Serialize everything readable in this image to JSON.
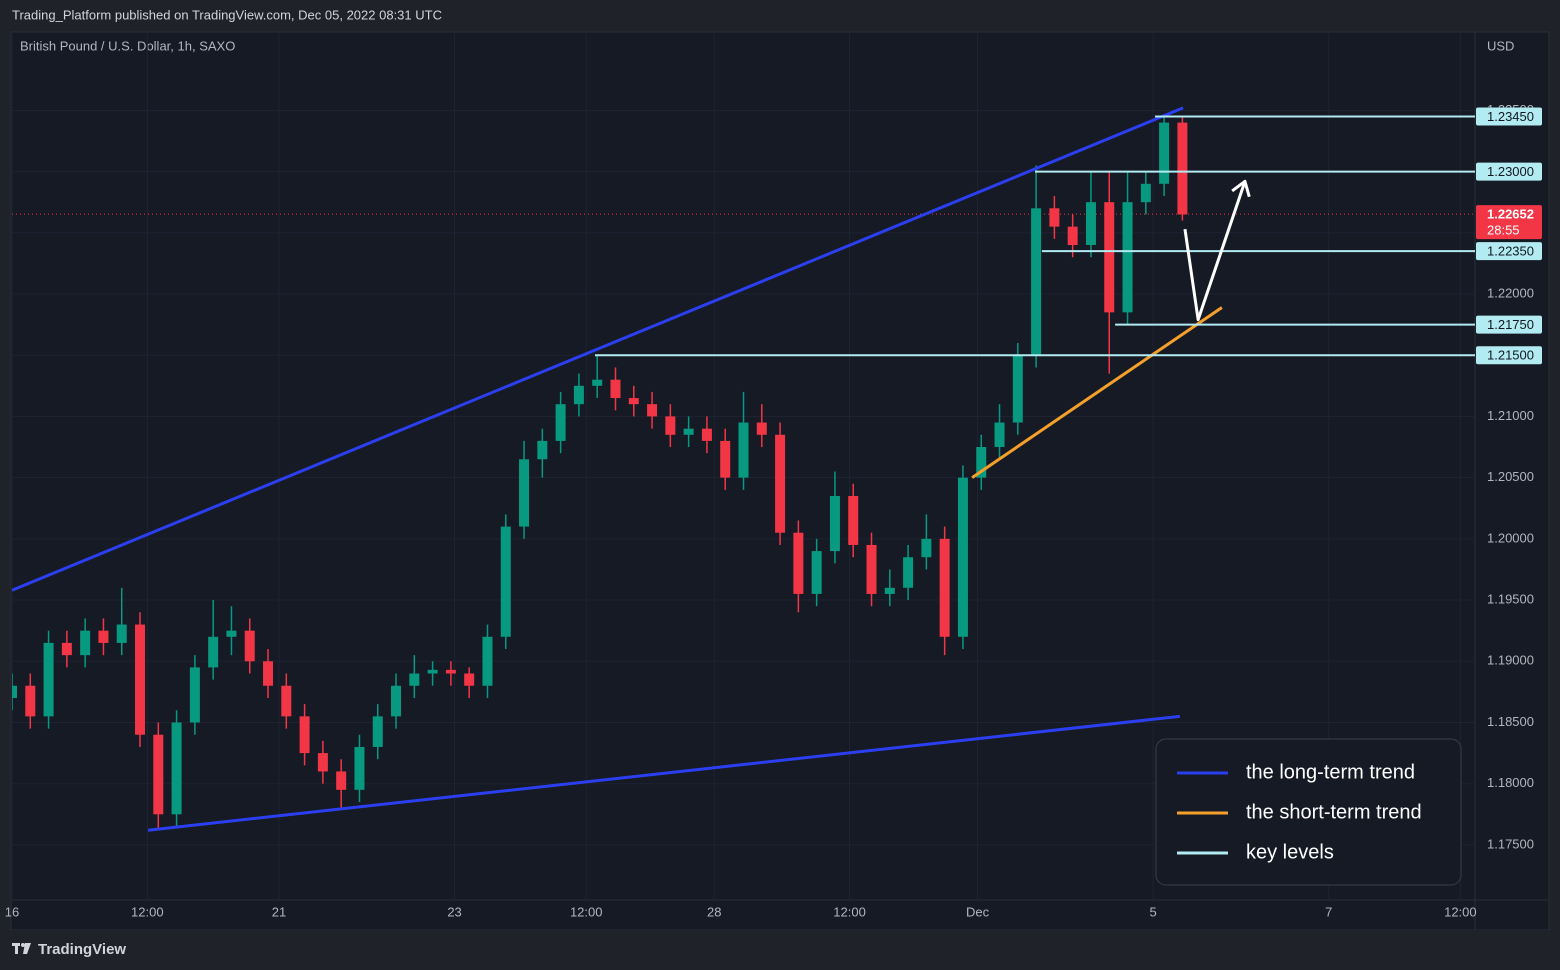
{
  "header": {
    "publisher": "Trading_Platform published on TradingView.com, Dec 05, 2022 08:31 UTC",
    "symbol": "British Pound / U.S. Dollar, 1h, SAXO",
    "currency": "USD",
    "brand": "TradingView"
  },
  "chart_data": {
    "type": "candlestick",
    "x": [
      0,
      5,
      10,
      15,
      20,
      25,
      30,
      35,
      40,
      45,
      50,
      55,
      60,
      65,
      70,
      75,
      80,
      85,
      90,
      95,
      100,
      105,
      110,
      115,
      120,
      125,
      130,
      135,
      140,
      145,
      150,
      155,
      160,
      165,
      170,
      175,
      180,
      185,
      190,
      195,
      200,
      205,
      210,
      215,
      220,
      225,
      230,
      235,
      240,
      245,
      250,
      255,
      260,
      265,
      270,
      275,
      280,
      285,
      290,
      295,
      300,
      305,
      310,
      315,
      320
    ],
    "open": [
      1.187,
      1.188,
      1.1855,
      1.1915,
      1.1905,
      1.1925,
      1.1915,
      1.193,
      1.184,
      1.1775,
      1.185,
      1.1895,
      1.192,
      1.1925,
      1.19,
      1.188,
      1.1855,
      1.1825,
      1.181,
      1.1795,
      1.183,
      1.1855,
      1.188,
      1.189,
      1.1893,
      1.189,
      1.188,
      1.192,
      1.201,
      1.2065,
      1.208,
      1.211,
      1.2125,
      1.213,
      1.2115,
      1.211,
      1.21,
      1.2085,
      1.209,
      1.208,
      1.205,
      1.2095,
      1.2085,
      1.2005,
      1.1955,
      1.199,
      1.2035,
      1.1995,
      1.1955,
      1.196,
      1.1985,
      1.2,
      1.192,
      1.205,
      1.2075,
      1.2095,
      1.215,
      1.227,
      1.2255,
      1.224,
      1.2275,
      1.2185,
      1.2275,
      1.229,
      1.234
    ],
    "high": [
      1.189,
      1.189,
      1.1925,
      1.1925,
      1.1935,
      1.1935,
      1.196,
      1.194,
      1.185,
      1.186,
      1.1905,
      1.195,
      1.1945,
      1.1935,
      1.191,
      1.189,
      1.1865,
      1.1835,
      1.182,
      1.184,
      1.1865,
      1.189,
      1.1905,
      1.19,
      1.19,
      1.1895,
      1.193,
      1.202,
      1.208,
      1.209,
      1.212,
      1.2135,
      1.215,
      1.214,
      1.2125,
      1.212,
      1.211,
      1.21,
      1.21,
      1.209,
      1.212,
      1.211,
      1.2095,
      1.2015,
      1.2,
      1.2055,
      1.2045,
      1.2005,
      1.1975,
      1.1995,
      1.202,
      1.201,
      1.206,
      1.2085,
      1.211,
      1.216,
      1.2305,
      1.228,
      1.2265,
      1.23,
      1.23,
      1.23,
      1.23,
      1.2345,
      1.2345
    ],
    "low": [
      1.186,
      1.1845,
      1.1845,
      1.1895,
      1.1895,
      1.1905,
      1.1905,
      1.183,
      1.1762,
      1.1765,
      1.184,
      1.1885,
      1.1905,
      1.189,
      1.187,
      1.1845,
      1.1815,
      1.18,
      1.178,
      1.1785,
      1.182,
      1.1845,
      1.187,
      1.188,
      1.188,
      1.187,
      1.187,
      1.191,
      1.2,
      1.205,
      1.207,
      1.21,
      1.2115,
      1.2105,
      1.21,
      1.209,
      1.2075,
      1.2075,
      1.207,
      1.204,
      1.204,
      1.2075,
      1.1995,
      1.194,
      1.1945,
      1.198,
      1.1985,
      1.1945,
      1.1945,
      1.195,
      1.1975,
      1.1905,
      1.191,
      1.204,
      1.2065,
      1.2085,
      1.214,
      1.2245,
      1.223,
      1.223,
      1.2135,
      1.2175,
      1.2265,
      1.228,
      1.226
    ],
    "close": [
      1.188,
      1.1855,
      1.1915,
      1.1905,
      1.1925,
      1.1915,
      1.193,
      1.184,
      1.1775,
      1.185,
      1.1895,
      1.192,
      1.1925,
      1.19,
      1.188,
      1.1855,
      1.1825,
      1.181,
      1.1795,
      1.183,
      1.1855,
      1.188,
      1.189,
      1.1893,
      1.189,
      1.188,
      1.192,
      1.201,
      1.2065,
      1.208,
      1.211,
      1.2125,
      1.213,
      1.2115,
      1.211,
      1.21,
      1.2085,
      1.209,
      1.208,
      1.205,
      1.2095,
      1.2085,
      1.2005,
      1.1955,
      1.199,
      1.2035,
      1.1995,
      1.1955,
      1.196,
      1.1985,
      1.2,
      1.192,
      1.205,
      1.2075,
      1.2095,
      1.215,
      1.227,
      1.2255,
      1.224,
      1.2275,
      1.2185,
      1.2275,
      1.229,
      1.234,
      1.2265
    ],
    "up_color": "#089981",
    "down_color": "#f23645",
    "xlim": [
      0,
      400
    ],
    "xticks": [
      {
        "value": 0,
        "label": "16"
      },
      {
        "value": 37,
        "label": "12:00"
      },
      {
        "value": 73,
        "label": "21"
      },
      {
        "value": 121,
        "label": "23"
      },
      {
        "value": 157,
        "label": "12:00"
      },
      {
        "value": 192,
        "label": "28"
      },
      {
        "value": 229,
        "label": "12:00"
      },
      {
        "value": 264,
        "label": "Dec"
      },
      {
        "value": 312,
        "label": "5"
      },
      {
        "value": 360,
        "label": "7"
      },
      {
        "value": 396,
        "label": "12:00"
      }
    ],
    "ylim": [
      1.1705,
      1.2414
    ],
    "yticks": [
      {
        "value": 1.175,
        "label": "1.17500"
      },
      {
        "value": 1.18,
        "label": "1.18000"
      },
      {
        "value": 1.185,
        "label": "1.18500"
      },
      {
        "value": 1.19,
        "label": "1.19000"
      },
      {
        "value": 1.195,
        "label": "1.19500"
      },
      {
        "value": 1.2,
        "label": "1.20000"
      },
      {
        "value": 1.205,
        "label": "1.20500"
      },
      {
        "value": 1.21,
        "label": "1.21000"
      },
      {
        "value": 1.215,
        "label": "1.21500"
      },
      {
        "value": 1.22,
        "label": "1.22000"
      },
      {
        "value": 1.225,
        "label": "1.22500"
      },
      {
        "value": 1.23,
        "label": "1.23000"
      },
      {
        "value": 1.235,
        "label": "1.23500"
      }
    ],
    "grid": true,
    "current_price": {
      "value": 1.22652,
      "countdown": "28:55",
      "color": "#f23645"
    },
    "series": [
      {
        "name": "the long-term trend",
        "color": "#2b3ff0",
        "lines": [
          {
            "x": [
              0,
              320.2
            ],
            "y": [
              1.1958,
              1.2352
            ]
          },
          {
            "x": [
              37.2,
              319.3
            ],
            "y": [
              1.1762,
              1.1855
            ]
          }
        ]
      },
      {
        "name": "the short-term trend",
        "color": "#f5a02a",
        "lines": [
          {
            "x": [
              262.5,
              330.8
            ],
            "y": [
              1.205,
              1.2189
            ]
          }
        ]
      },
      {
        "name": "key levels",
        "color": "#b2ebf2",
        "levels": [
          {
            "value": 1.2345,
            "label": "1.23450",
            "x": 312.5
          },
          {
            "value": 1.23,
            "label": "1.23000",
            "x": 279.7
          },
          {
            "value": 1.2235,
            "label": "1.22350",
            "x": 281.6
          },
          {
            "value": 1.2175,
            "label": "1.21750",
            "x": 301.6
          },
          {
            "value": 1.215,
            "label": "1.21500",
            "x": 159.4
          }
        ]
      }
    ],
    "projection": {
      "x": [
        320.7,
        324.3,
        337.1
      ],
      "y": [
        1.2253,
        1.2179,
        1.2292
      ],
      "color": "#ffffff"
    },
    "legend": "bottom-right"
  }
}
